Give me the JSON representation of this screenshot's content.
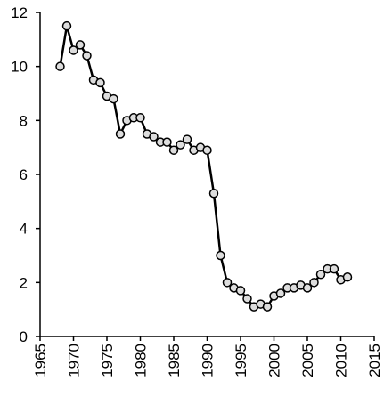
{
  "chart_data": {
    "type": "line",
    "x": [
      1968,
      1969,
      1970,
      1971,
      1972,
      1973,
      1974,
      1975,
      1976,
      1977,
      1978,
      1979,
      1980,
      1981,
      1982,
      1983,
      1984,
      1985,
      1986,
      1987,
      1988,
      1989,
      1990,
      1991,
      1992,
      1993,
      1994,
      1995,
      1996,
      1997,
      1998,
      1999,
      2000,
      2001,
      2002,
      2003,
      2004,
      2005,
      2006,
      2007,
      2008,
      2009,
      2010,
      2011
    ],
    "series": [
      {
        "color": "#000000",
        "values": [
          10.0,
          11.5,
          10.6,
          10.8,
          10.4,
          9.5,
          9.4,
          8.9,
          8.8,
          7.5,
          8.0,
          8.1,
          8.1,
          7.5,
          7.4,
          7.2,
          7.2,
          6.9,
          7.1,
          7.3,
          6.9,
          7.0,
          6.9,
          5.3,
          3.0,
          2.0,
          1.8,
          1.7,
          1.4,
          1.1,
          1.2,
          1.1,
          1.5,
          1.6,
          1.8,
          1.8,
          1.9,
          1.8,
          2.0,
          2.3,
          2.5,
          2.5,
          2.1,
          2.2
        ]
      }
    ],
    "xlim": [
      1965,
      2015
    ],
    "xticks": [
      1965,
      1970,
      1975,
      1980,
      1985,
      1990,
      1995,
      2000,
      2005,
      2010,
      2015
    ],
    "ylim": [
      0,
      12
    ],
    "yticks": [
      0,
      2,
      4,
      6,
      8,
      10,
      12
    ],
    "grid": false
  }
}
